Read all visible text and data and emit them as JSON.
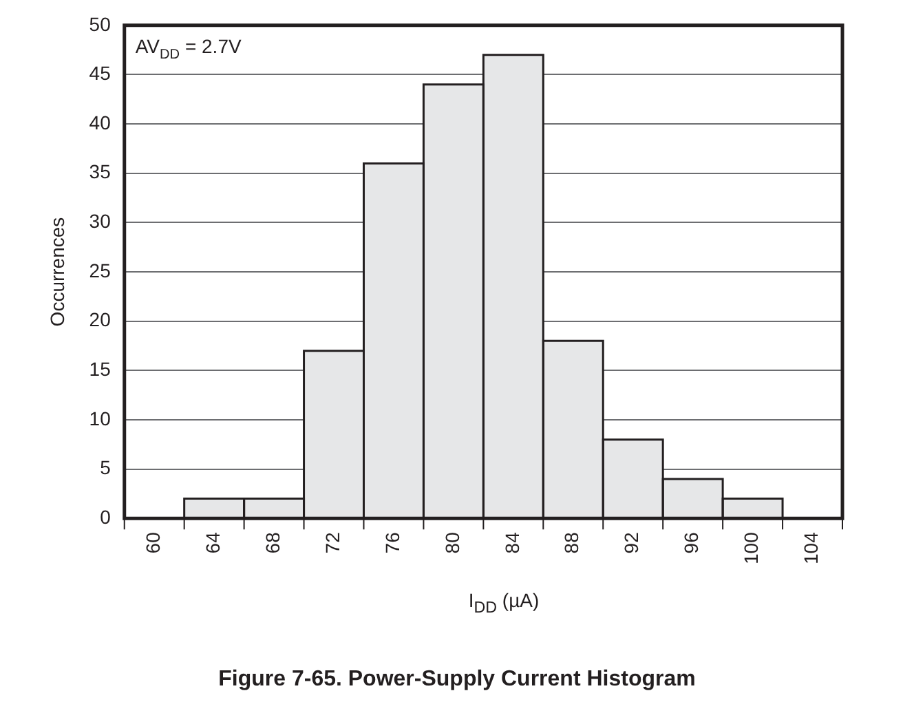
{
  "chart_data": {
    "type": "histogram",
    "title": "Figure 7-65. Power-Supply Current Histogram",
    "xlabel": "I$_{DD}$ (µA)",
    "ylabel": "Occurrences",
    "annotations": [
      "AV$_{DD}$ = 2.7V"
    ],
    "bins": [
      58,
      62,
      66,
      70,
      74,
      78,
      82,
      86,
      90,
      94,
      98,
      102,
      106
    ],
    "values": [
      0,
      2,
      2,
      17,
      36,
      44,
      47,
      18,
      8,
      4,
      2,
      0
    ],
    "color": "#e6e7e8",
    "xlim": [
      58,
      106
    ],
    "xticks": [
      60,
      64,
      68,
      72,
      76,
      80,
      84,
      88,
      92,
      96,
      100,
      104
    ],
    "ylim": [
      0,
      50
    ],
    "yticks": [
      0,
      5,
      10,
      15,
      20,
      25,
      30,
      35,
      40,
      45,
      50
    ],
    "grid": "y",
    "legend": false
  }
}
